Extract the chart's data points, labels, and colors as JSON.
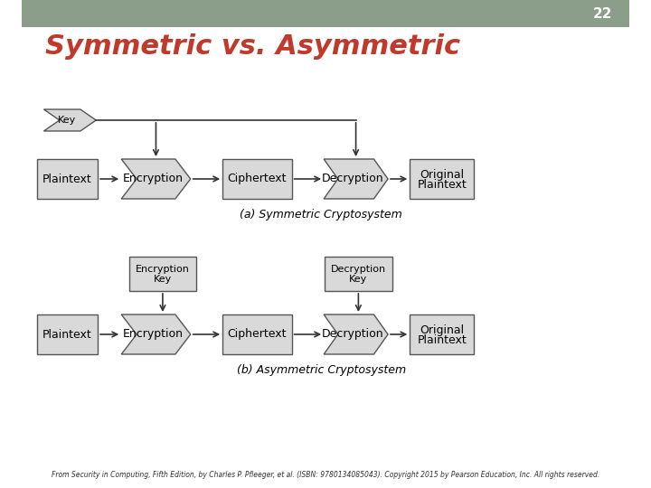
{
  "title": "Symmetric vs. Asymmetric",
  "slide_number": "22",
  "header_color": "#8a9e8a",
  "title_color": "#c0392b",
  "background_color": "#ffffff",
  "footer_text": "From Security in Computing, Fifth Edition, by Charles P. Pfleeger, et al. (ISBN: 9780134085043). Copyright 2015 by Pearson Education, Inc. All rights reserved.",
  "caption_a": "(a) Symmetric Cryptosystem",
  "caption_b": "(b) Asymmetric Cryptosystem",
  "box_fill": "#d9d9d9",
  "box_edge": "#555555",
  "line_color": "#333333",
  "text_color": "#000000"
}
